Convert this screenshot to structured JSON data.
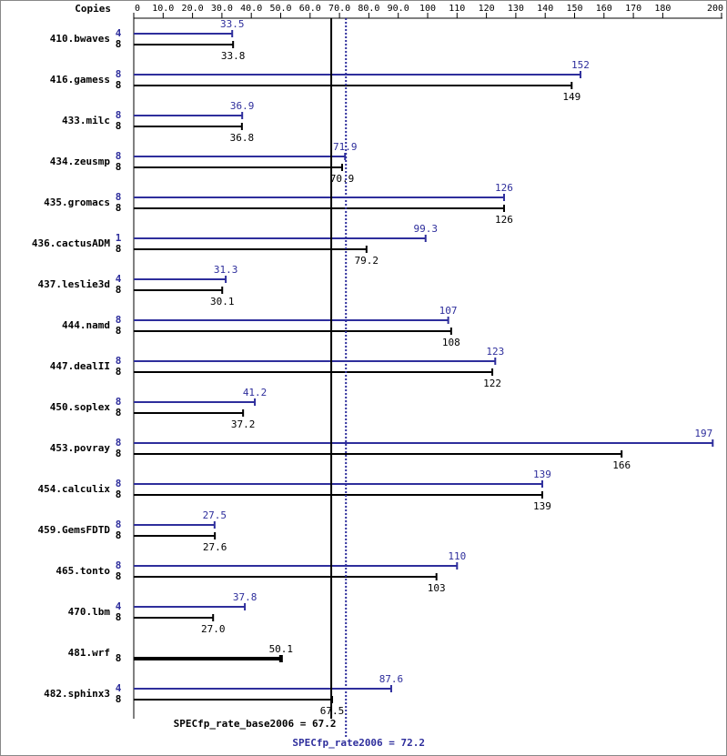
{
  "chart_data": {
    "type": "bar",
    "orientation": "horizontal",
    "copies_label": "Copies",
    "categories": [
      "410.bwaves",
      "416.gamess",
      "433.milc",
      "434.zeusmp",
      "435.gromacs",
      "436.cactusADM",
      "437.leslie3d",
      "444.namd",
      "447.dealII",
      "450.soplex",
      "453.povray",
      "454.calculix",
      "459.GemsFDTD",
      "465.tonto",
      "470.lbm",
      "481.wrf",
      "482.sphinx3"
    ],
    "series": [
      {
        "color": "#2e2e9c",
        "copies": [
          4,
          8,
          8,
          8,
          8,
          1,
          4,
          8,
          8,
          8,
          8,
          8,
          8,
          8,
          4,
          null,
          4
        ],
        "values": [
          33.5,
          152,
          36.9,
          71.9,
          126,
          99.3,
          31.3,
          107,
          123,
          41.2,
          197,
          139,
          27.5,
          110,
          37.8,
          null,
          87.6
        ],
        "value_labels": [
          "33.5",
          "152",
          "36.9",
          "71.9",
          "126",
          "99.3",
          "31.3",
          "107",
          "123",
          "41.2",
          "197",
          "139",
          "27.5",
          "110",
          "37.8",
          null,
          "87.6"
        ]
      },
      {
        "color": "#000000",
        "copies": [
          8,
          8,
          8,
          8,
          8,
          8,
          8,
          8,
          8,
          8,
          8,
          8,
          8,
          8,
          8,
          8,
          8
        ],
        "values": [
          33.8,
          149,
          36.8,
          70.9,
          126,
          79.2,
          30.1,
          108,
          122,
          37.2,
          166,
          139,
          27.6,
          103,
          27.0,
          50.1,
          67.5
        ],
        "value_labels": [
          "33.8",
          "149",
          "36.8",
          "70.9",
          "126",
          "79.2",
          "30.1",
          "108",
          "122",
          "37.2",
          "166",
          "139",
          "27.6",
          "103",
          "27.0",
          "50.1",
          "67.5"
        ]
      }
    ],
    "xlim": [
      0,
      200
    ],
    "xticks": [
      0,
      {
        "value": 10,
        "label": "10.0"
      },
      {
        "value": 20,
        "label": "20.0"
      },
      {
        "value": 30,
        "label": "30.0"
      },
      {
        "value": 40,
        "label": "40.0"
      },
      {
        "value": 50,
        "label": "50.0"
      },
      {
        "value": 60,
        "label": "60.0"
      },
      {
        "value": 70,
        "label": "70.0"
      },
      {
        "value": 80,
        "label": "80.0"
      },
      {
        "value": 90,
        "label": "90.0"
      },
      100,
      110,
      120,
      130,
      140,
      150,
      160,
      170,
      180,
      200
    ],
    "ref_lines": [
      {
        "label": "SPECfp_rate_base2006 = 67.2",
        "value": 67.2,
        "color": "#000000",
        "style": "solid"
      },
      {
        "label": "SPECfp_rate2006 = 72.2",
        "value": 72.2,
        "color": "#2e2e9c",
        "style": "dotted"
      }
    ]
  }
}
